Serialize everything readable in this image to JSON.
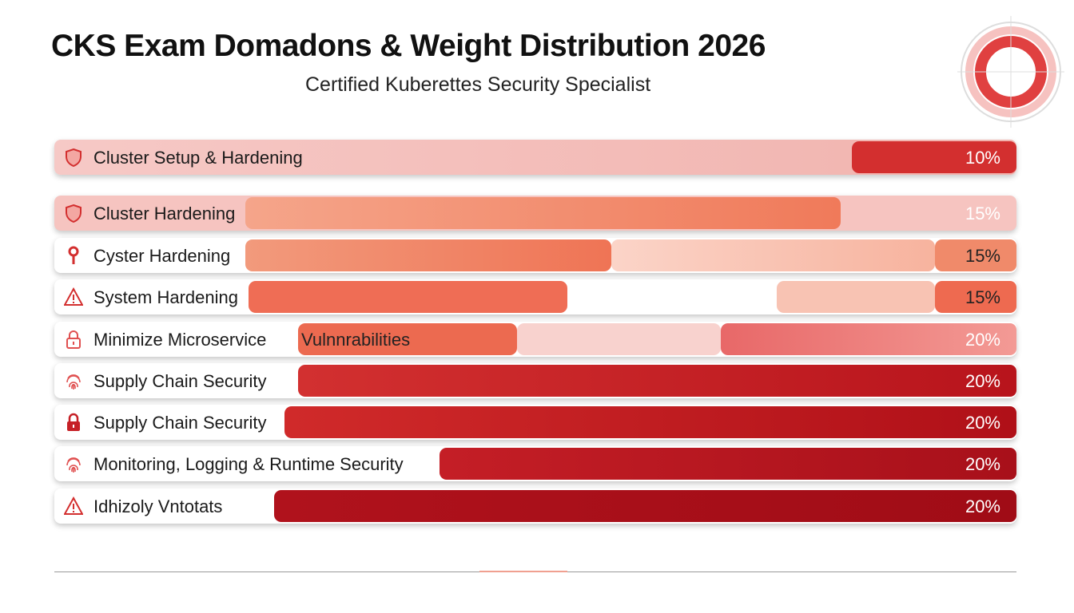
{
  "header": {
    "title": "CKS Exam Domadons & Weight Distribution 2026",
    "subtitle": "Certified Kuberettes Security Specialist"
  },
  "colors": {
    "accent": "#d32f2f",
    "light": "#f5c0bc",
    "salmon": "#f08060",
    "dark": "#a8101a"
  },
  "chart_data": {
    "type": "bar",
    "title": "CKS Exam Domadons & Weight Distribution 2026",
    "subtitle": "Certified Kuberettes Security Specialist",
    "categories": [
      "Cluster Setup & Hardening",
      "Cluster Hardening",
      "Cyster Hardening",
      "System Hardening",
      "Minimize Microservice",
      "Supply Chain Security",
      "Supply Chain Security",
      "Monitoring, Logging & Runtime Security",
      "Idhizoly Vntotats"
    ],
    "values": [
      10,
      15,
      15,
      15,
      20,
      20,
      20,
      20,
      20
    ],
    "labels": [
      "10%",
      "15%",
      "15%",
      "15%",
      "20%",
      "20%",
      "20%",
      "20%",
      "20%"
    ],
    "inner_labels": [
      "",
      "",
      "",
      "",
      "Vulnnrabilities",
      "",
      "",
      "",
      ""
    ],
    "icons": [
      "shield-icon",
      "shield-icon",
      "key-icon",
      "warning-icon",
      "lock-open-icon",
      "fingerprint-icon",
      "lock-icon",
      "fingerprint-icon",
      "warning-icon"
    ],
    "unit": "%"
  }
}
